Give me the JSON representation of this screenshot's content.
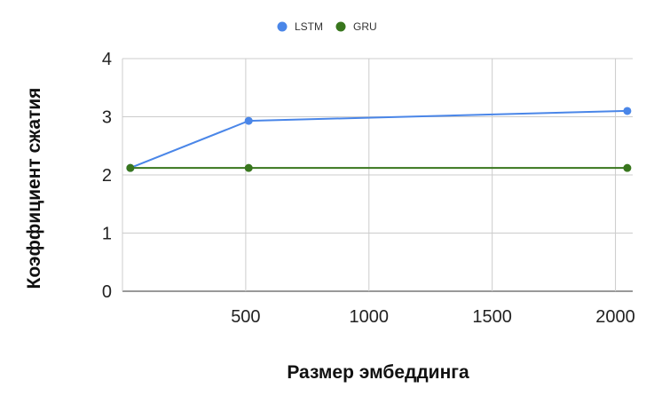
{
  "chart_data": {
    "type": "line",
    "title": "",
    "xlabel": "Размер эмбеддинга",
    "ylabel": "Коэффициент сжатия",
    "xlim": [
      0,
      2070
    ],
    "ylim": [
      0,
      4
    ],
    "x_ticks": [
      500,
      1000,
      1500,
      2000
    ],
    "y_ticks": [
      0,
      1,
      2,
      3,
      4
    ],
    "grid": true,
    "legend_position": "top",
    "x": [
      32,
      512,
      2048
    ],
    "series": [
      {
        "name": "LSTM",
        "color": "#4a86e8",
        "values": [
          2.12,
          2.93,
          3.1
        ]
      },
      {
        "name": "GRU",
        "color": "#38761d",
        "values": [
          2.12,
          2.12,
          2.12
        ]
      }
    ]
  }
}
